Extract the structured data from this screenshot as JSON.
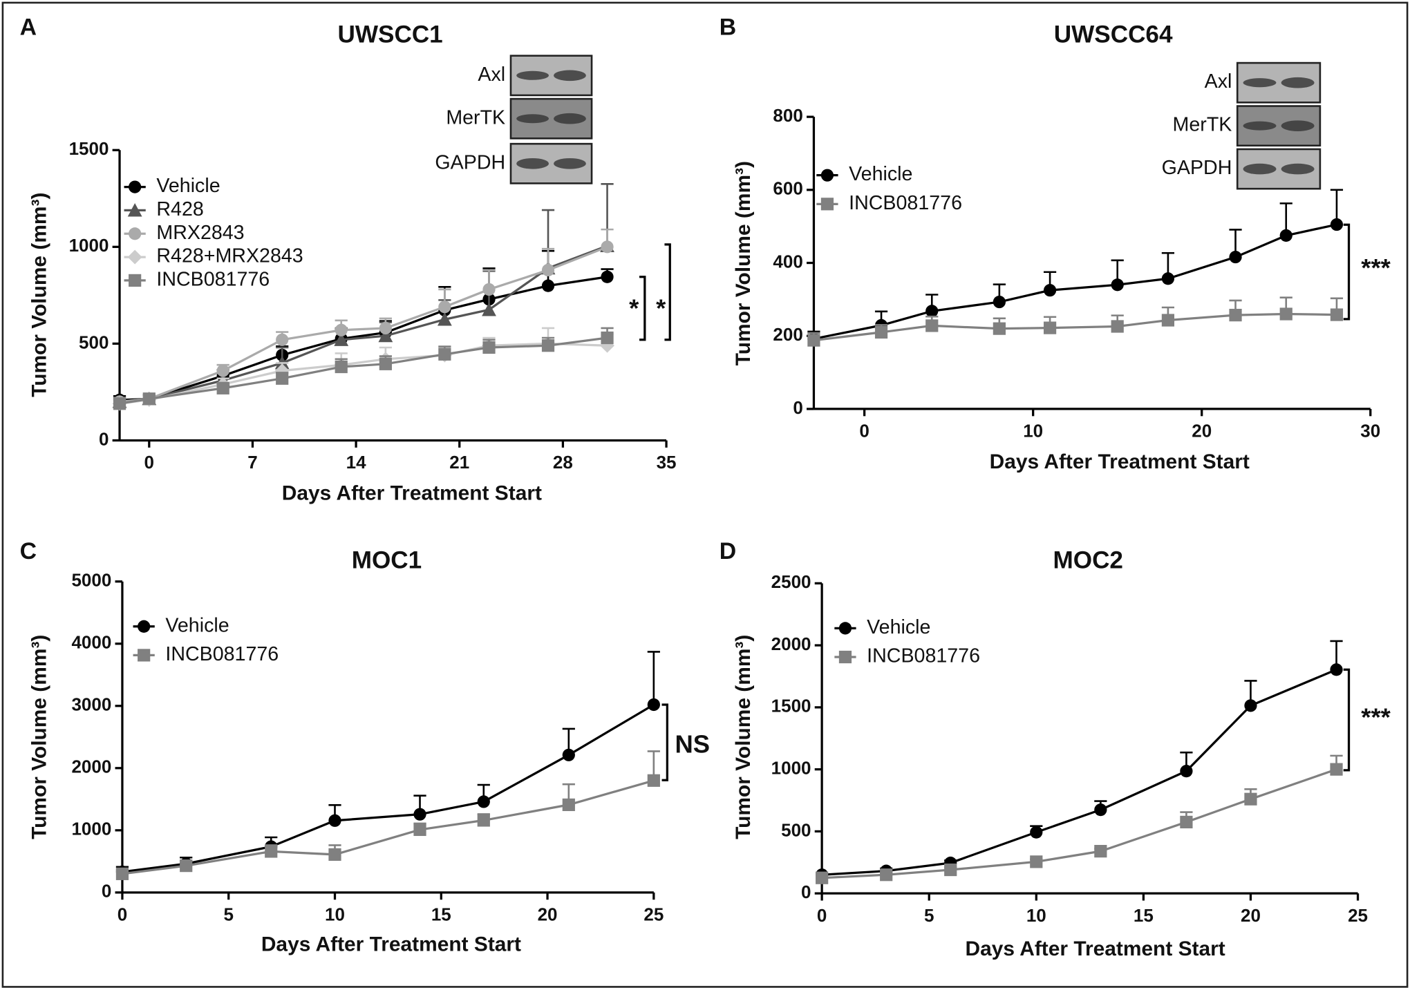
{
  "chart_data": [
    {
      "type": "line",
      "panel_label": "A",
      "title": "UWSCC1",
      "x_label": "Days After Treatment Start",
      "y_label": "Tumor Volume (mm³)",
      "x": [
        -2,
        0,
        5,
        9,
        13,
        16,
        20,
        23,
        27,
        31
      ],
      "xlim": [
        -2,
        35
      ],
      "xticks": [
        0,
        7,
        14,
        21,
        28,
        35
      ],
      "ylim": [
        0,
        1500
      ],
      "yticks": [
        0,
        500,
        1000,
        1500
      ],
      "series": [
        {
          "name": "Vehicle",
          "color": "#000000",
          "marker": "circle",
          "values": [
            209,
            214,
            334,
            441,
            525,
            557,
            673,
            729,
            799,
            845
          ],
          "errors": [
            20,
            20,
            30,
            45,
            50,
            60,
            120,
            160,
            180,
            40
          ]
        },
        {
          "name": "R428",
          "color": "#555555",
          "marker": "triangle",
          "values": [
            200,
            215,
            310,
            400,
            520,
            540,
            625,
            675,
            890,
            1005
          ],
          "errors": [
            20,
            20,
            40,
            80,
            60,
            70,
            100,
            200,
            300,
            320
          ]
        },
        {
          "name": "MRX2843",
          "color": "#aaaaaa",
          "marker": "circle",
          "values": [
            200,
            215,
            360,
            520,
            570,
            580,
            690,
            780,
            880,
            1000
          ],
          "errors": [
            20,
            20,
            30,
            40,
            50,
            50,
            90,
            100,
            110,
            90
          ]
        },
        {
          "name": "R428+MRX2843",
          "color": "#cccccc",
          "marker": "diamond",
          "values": [
            190,
            210,
            290,
            360,
            390,
            420,
            440,
            490,
            500,
            490
          ],
          "errors": [
            20,
            20,
            30,
            40,
            60,
            60,
            40,
            40,
            80,
            60
          ]
        },
        {
          "name": "INCB081776",
          "color": "#808080",
          "marker": "square",
          "values": [
            190,
            215,
            270,
            320,
            380,
            395,
            445,
            480,
            490,
            530
          ],
          "errors": [
            20,
            20,
            25,
            30,
            40,
            40,
            40,
            40,
            40,
            50
          ]
        }
      ],
      "annotations": [
        "*",
        "*"
      ],
      "blot_labels": [
        "Axl",
        "MerTK",
        "GAPDH"
      ]
    },
    {
      "type": "line",
      "panel_label": "B",
      "title": "UWSCC64",
      "x_label": "Days After Treatment Start",
      "y_label": "Tumor Volume (mm³)",
      "x": [
        -3,
        1,
        4,
        8,
        11,
        15,
        18,
        22,
        25,
        28
      ],
      "xlim": [
        -3,
        30
      ],
      "xticks": [
        0,
        10,
        20,
        30
      ],
      "ylim": [
        0,
        800
      ],
      "yticks": [
        0,
        200,
        400,
        600,
        800
      ],
      "series": [
        {
          "name": "Vehicle",
          "color": "#000000",
          "marker": "circle",
          "values": [
            192,
            229,
            268,
            293,
            325,
            340,
            357,
            416,
            475,
            505
          ],
          "errors": [
            20,
            38,
            45,
            48,
            50,
            67,
            70,
            75,
            88,
            95
          ]
        },
        {
          "name": "INCB081776",
          "color": "#808080",
          "marker": "square",
          "values": [
            188,
            210,
            228,
            220,
            222,
            226,
            243,
            257,
            260,
            258
          ],
          "errors": [
            20,
            20,
            25,
            28,
            30,
            30,
            35,
            40,
            45,
            45
          ]
        }
      ],
      "annotations": [
        "***"
      ],
      "blot_labels": [
        "Axl",
        "MerTK",
        "GAPDH"
      ]
    },
    {
      "type": "line",
      "panel_label": "C",
      "title": "MOC1",
      "x_label": "Days After Treatment Start",
      "y_label": "Tumor Volume (mm³)",
      "x": [
        0,
        3,
        7,
        10,
        14,
        17,
        21,
        25
      ],
      "xlim": [
        0,
        25
      ],
      "xticks": [
        0,
        5,
        10,
        15,
        20,
        25
      ],
      "ylim": [
        0,
        5000
      ],
      "yticks": [
        0,
        1000,
        2000,
        3000,
        4000,
        5000
      ],
      "series": [
        {
          "name": "Vehicle",
          "color": "#000000",
          "marker": "circle",
          "values": [
            332,
            462,
            737,
            1156,
            1257,
            1460,
            2211,
            3020
          ],
          "errors": [
            80,
            100,
            150,
            250,
            300,
            270,
            420,
            850
          ]
        },
        {
          "name": "INCB081776",
          "color": "#808080",
          "marker": "square",
          "values": [
            300,
            430,
            660,
            610,
            1010,
            1160,
            1410,
            1800
          ],
          "errors": [
            60,
            80,
            100,
            150,
            100,
            100,
            330,
            470
          ]
        }
      ],
      "annotations": [
        "NS"
      ]
    },
    {
      "type": "line",
      "panel_label": "D",
      "title": "MOC2",
      "x_label": "Days After Treatment Start",
      "y_label": "Tumor Volume (mm³)",
      "x": [
        0,
        3,
        6,
        10,
        13,
        17,
        20,
        24
      ],
      "xlim": [
        0,
        25
      ],
      "xticks": [
        0,
        5,
        10,
        15,
        20,
        25
      ],
      "ylim": [
        0,
        2500
      ],
      "yticks": [
        0,
        500,
        1000,
        1500,
        2000,
        2500
      ],
      "series": [
        {
          "name": "Vehicle",
          "color": "#000000",
          "marker": "circle",
          "values": [
            150,
            181,
            246,
            493,
            674,
            986,
            1514,
            1804
          ],
          "errors": [
            0,
            20,
            20,
            50,
            70,
            150,
            200,
            230
          ]
        },
        {
          "name": "INCB081776",
          "color": "#808080",
          "marker": "square",
          "values": [
            125,
            150,
            190,
            255,
            340,
            575,
            760,
            1000
          ],
          "errors": [
            0,
            15,
            20,
            20,
            20,
            80,
            80,
            110
          ]
        }
      ],
      "annotations": [
        "***"
      ]
    }
  ]
}
